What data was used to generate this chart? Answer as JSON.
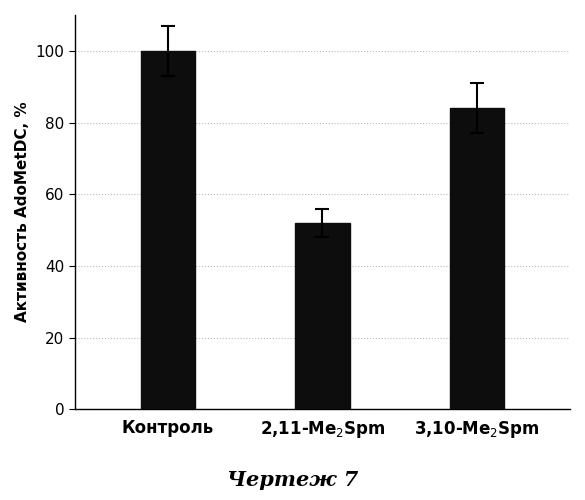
{
  "categories": [
    "Контроль",
    "2,11-Me$_2$Spm",
    "3,10-Me$_2$Spm"
  ],
  "values": [
    100,
    52,
    84
  ],
  "errors": [
    7,
    4,
    7
  ],
  "bar_color": "#0d0d0d",
  "bar_width": 0.35,
  "xlim": [
    -0.6,
    2.6
  ],
  "ylim": [
    0,
    110
  ],
  "yticks": [
    0,
    20,
    40,
    60,
    80,
    100
  ],
  "ylabel": "Активность AdoMetDC, %",
  "title": "Чертеж 7",
  "title_fontsize": 15,
  "ylabel_fontsize": 11,
  "xtick_fontsize": 12,
  "ytick_fontsize": 11,
  "grid_color": "#bbbbbb",
  "grid_linestyle": ":",
  "background_color": "#ffffff",
  "capsize": 5,
  "elinewidth": 1.5,
  "capthick": 1.5
}
